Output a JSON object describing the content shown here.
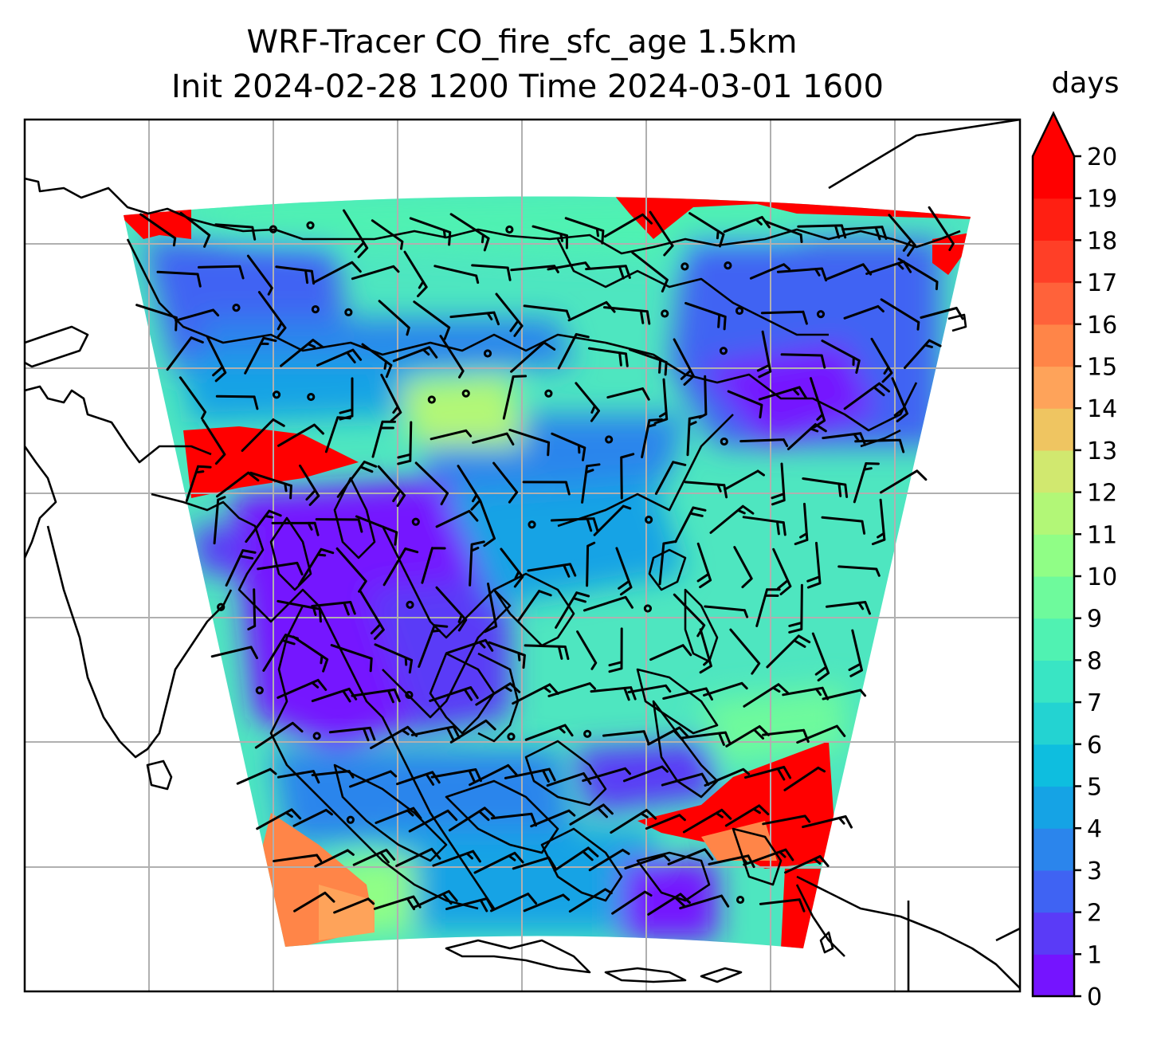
{
  "title": {
    "line1": "WRF-Tracer CO_fire_sfc_age 1.5km",
    "line2": "Init 2024-02-28 1200 Time 2024-03-01 1600"
  },
  "colorbar": {
    "unit": "days",
    "extend": "max",
    "ticks": [
      "0",
      "1",
      "2",
      "3",
      "4",
      "5",
      "6",
      "7",
      "8",
      "9",
      "10",
      "11",
      "12",
      "13",
      "14",
      "15",
      "16",
      "17",
      "18",
      "19",
      "20"
    ],
    "colors": [
      "#7514ff",
      "#5a3bf7",
      "#3f63f3",
      "#2b85ec",
      "#15a3e5",
      "#0ebedf",
      "#23d3d2",
      "#39e5c4",
      "#50f2b2",
      "#6efa9c",
      "#90fe86",
      "#b2f777",
      "#d1e86f",
      "#efc561",
      "#fea35a",
      "#ff8548",
      "#ff623a",
      "#ff3f27",
      "#ff1f12",
      "#ff0000"
    ],
    "over_color": "#ff0000"
  },
  "map": {
    "gridlines": true,
    "field_colors": {
      "red": "#ff0000",
      "orange": "#ff8548",
      "purple": "#7514ff",
      "blue": "#2b85ec",
      "cyan": "#39e5c4",
      "lightgreen": "#90fe86"
    }
  }
}
